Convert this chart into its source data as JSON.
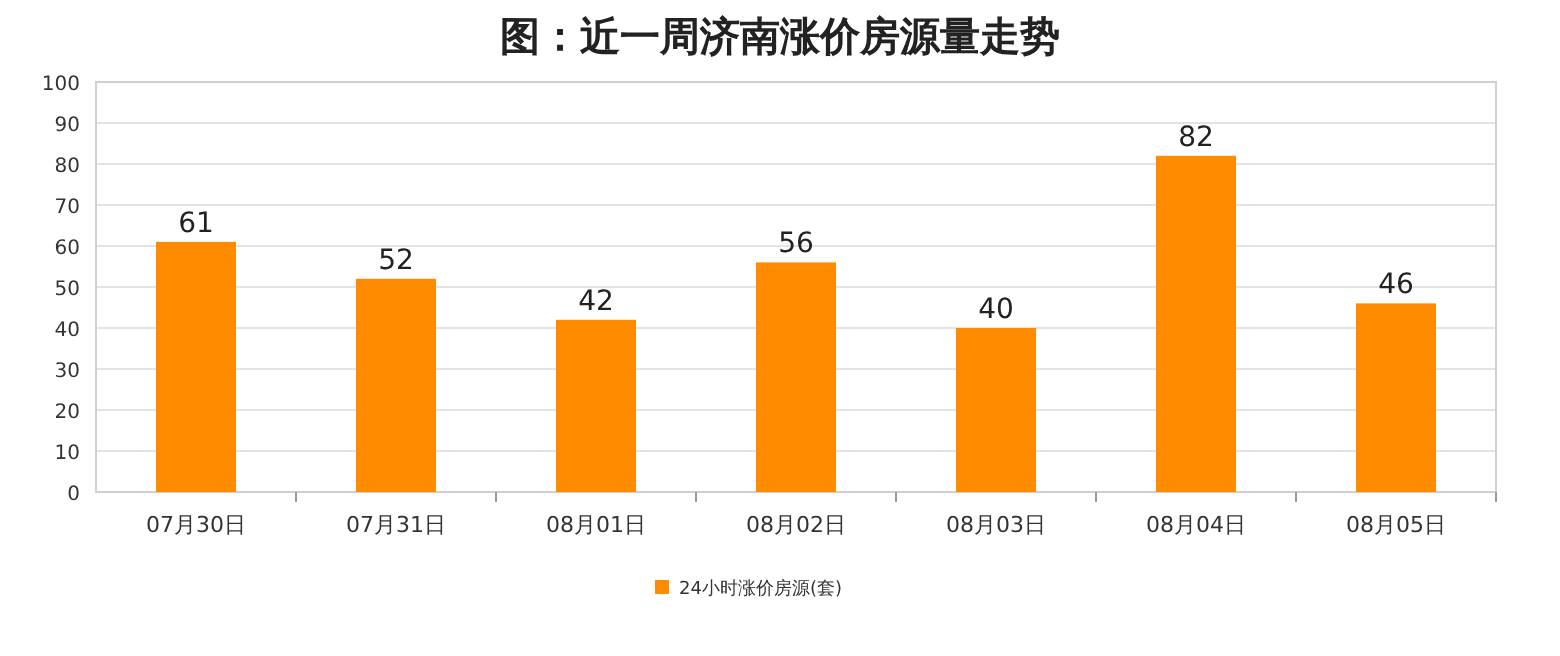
{
  "chart_data": {
    "type": "bar",
    "title": "图：近一周济南涨价房源量走势",
    "categories": [
      "07月30日",
      "07月31日",
      "08月01日",
      "08月02日",
      "08月03日",
      "08月04日",
      "08月05日"
    ],
    "series": [
      {
        "name": "24小时涨价房源(套)",
        "color": "#ff8c00",
        "values": [
          61,
          52,
          42,
          56,
          40,
          82,
          46
        ]
      }
    ],
    "ylim": [
      0,
      100
    ],
    "yticks": [
      0,
      10,
      20,
      30,
      40,
      50,
      60,
      70,
      80,
      90,
      100
    ],
    "grid": "y",
    "legend": "bottom",
    "data_labels": true
  }
}
